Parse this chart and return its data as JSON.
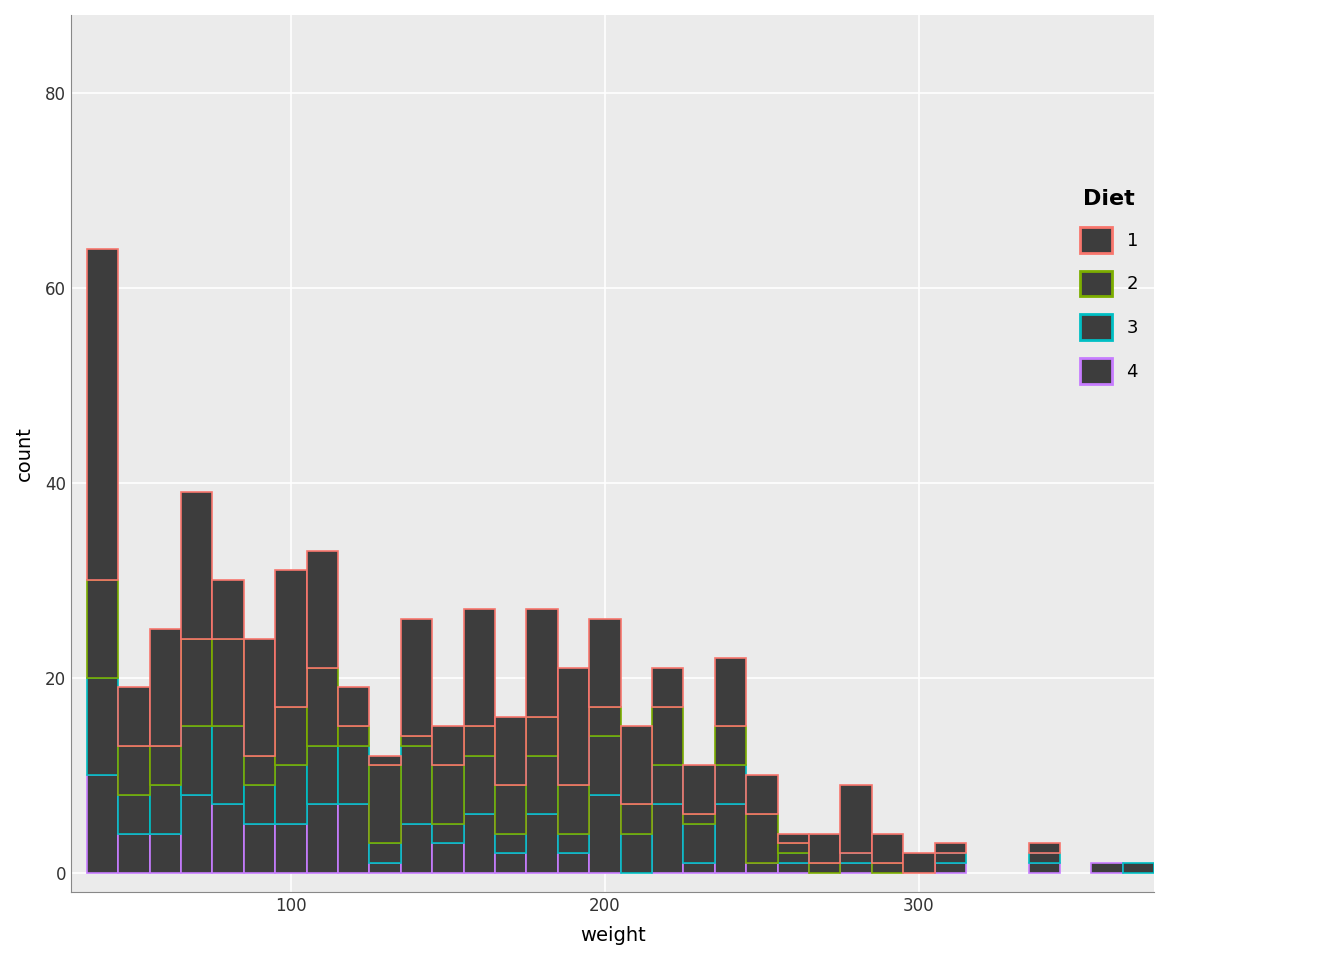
{
  "title": "",
  "xlabel": "weight",
  "binwidth": 10,
  "xlim": [
    30,
    375
  ],
  "ylim": [
    -2,
    88
  ],
  "yticks": [
    0,
    20,
    40,
    60,
    80
  ],
  "xticks": [
    100,
    200,
    300
  ],
  "fill_color": "#3d3d3d",
  "border_colors": [
    "#F8766D",
    "#7CAE00",
    "#00BFC4",
    "#C77CFF"
  ],
  "diet_labels": [
    "1",
    "2",
    "3",
    "4"
  ],
  "legend_title": "Diet",
  "background_color": "#ffffff",
  "panel_background": "#ebebeb",
  "grid_color": "#ffffff",
  "border_linewidth": 1.2
}
